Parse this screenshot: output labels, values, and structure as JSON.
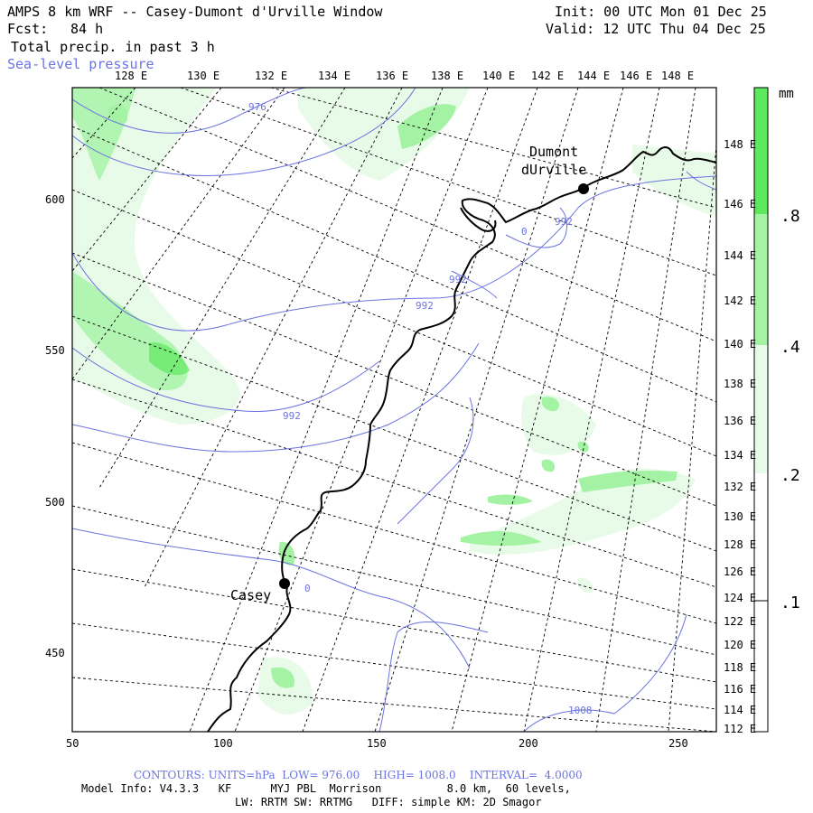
{
  "header": {
    "title": "AMPS 8 km WRF -- Casey-Dumont d'Urville Window",
    "fcst_label": "Fcst:",
    "fcst_value": "84 h",
    "field": "Total precip. in past 3 h",
    "overlay": "Sea-level pressure",
    "init": "Init: 00 UTC Mon 01 Dec 25",
    "valid": "Valid: 12 UTC Thu 04 Dec 25"
  },
  "axes": {
    "top_lon_labels": [
      "128 E",
      "130 E",
      "132 E",
      "134 E",
      "136 E",
      "138 E",
      "140 E",
      "142 E",
      "144 E",
      "146 E",
      "148 E"
    ],
    "right_lon_labels": [
      "148 E",
      "146 E",
      "144 E",
      "142 E",
      "140 E",
      "138 E",
      "136 E",
      "134 E",
      "132 E",
      "130 E",
      "128 E",
      "126 E",
      "124 E",
      "122 E",
      "120 E",
      "118 E",
      "116 E",
      "114 E",
      "112 E"
    ],
    "left_y_labels": [
      "600",
      "550",
      "500",
      "450"
    ],
    "bottom_x_labels": [
      "50",
      "100",
      "150",
      "200",
      "250"
    ]
  },
  "stations": [
    {
      "name": "Casey"
    },
    {
      "name_line1": "Dumont",
      "name_line2": "dUrville"
    }
  ],
  "contour_labels": [
    "976",
    "992",
    "992",
    "992",
    "992",
    "1008",
    "0",
    "0"
  ],
  "colorbar": {
    "unit": "mm",
    "labels": [
      ".8",
      ".4",
      ".2",
      ".1"
    ],
    "colors": [
      "#5ee85e",
      "#a4f2a4",
      "#e8fbe8",
      "#ffffff"
    ]
  },
  "footer": {
    "contours": "CONTOURS: UNITS=hPa  LOW= 976.00    HIGH= 1008.0    INTERVAL=  4.0000",
    "model_info": "Model Info: V4.3.3   KF      MYJ PBL  Morrison          8.0 km,  60 levels,",
    "physics": "LW: RRTM SW: RRTMG   DIFF: simple KM: 2D Smagor"
  },
  "colors": {
    "contour": "#6b73e0",
    "precip_light": "#e8fbe8",
    "precip_mid": "#a4f2a4",
    "precip_strong": "#5ee85e"
  }
}
